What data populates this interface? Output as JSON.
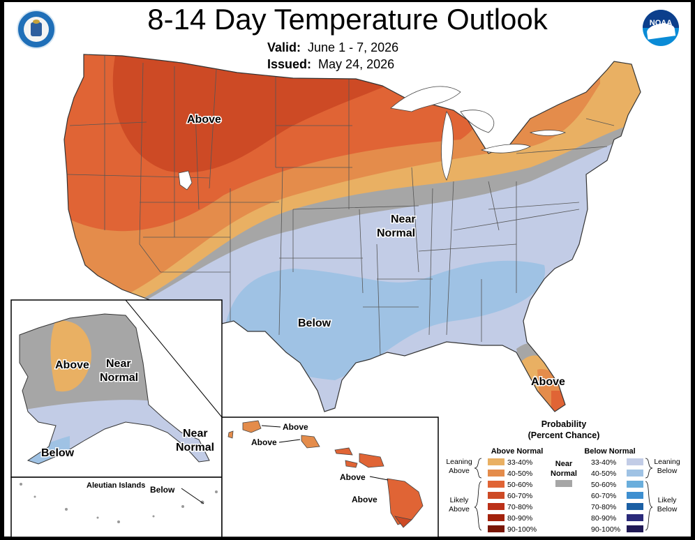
{
  "title": "8-14 Day Temperature Outlook",
  "valid_label": "Valid:",
  "valid_value": "June 1 - 7, 2026",
  "issued_label": "Issued:",
  "issued_value": "May 24, 2026",
  "colors": {
    "a1": "#e9b063",
    "a2": "#e48c4b",
    "a3": "#e06435",
    "a4": "#cd4a25",
    "a5": "#bb3018",
    "a6": "#a3220c",
    "a7": "#7a1706",
    "nn": "#a6a6a6",
    "b1": "#c2cce6",
    "b2": "#9fc2e4",
    "b3": "#6aaedc",
    "b4": "#3e8fd0",
    "b5": "#1b5fa4",
    "b6": "#2a2a7a",
    "b7": "#201a55"
  },
  "map_labels": {
    "conus_above": "Above",
    "conus_near": "Near",
    "conus_normal": "Normal",
    "conus_below": "Below",
    "florida_above": "Above",
    "ak_above": "Above",
    "ak_near": "Near",
    "ak_normal": "Normal",
    "ak_below": "Below",
    "ak_se_near": "Near",
    "ak_se_normal": "Normal",
    "aleutian_title": "Aleutian Islands",
    "aleutian_below": "Below",
    "hi_above_1": "Above",
    "hi_above_2": "Above",
    "hi_above_3": "Above",
    "hi_above_4": "Above"
  },
  "legend": {
    "title_1": "Probability",
    "title_2": "(Percent Chance)",
    "above_header": "Above Normal",
    "below_header": "Below Normal",
    "near_1": "Near",
    "near_2": "Normal",
    "leaning_above_1": "Leaning",
    "leaning_above_2": "Above",
    "likely_above_1": "Likely",
    "likely_above_2": "Above",
    "leaning_below_1": "Leaning",
    "leaning_below_2": "Below",
    "likely_below_1": "Likely",
    "likely_below_2": "Below",
    "ranges": [
      "33-40%",
      "40-50%",
      "50-60%",
      "60-70%",
      "70-80%",
      "80-90%",
      "90-100%"
    ]
  },
  "logos": {
    "left": "commerce-seal-icon",
    "right": "noaa-logo-icon",
    "right_text": "NOAA"
  }
}
